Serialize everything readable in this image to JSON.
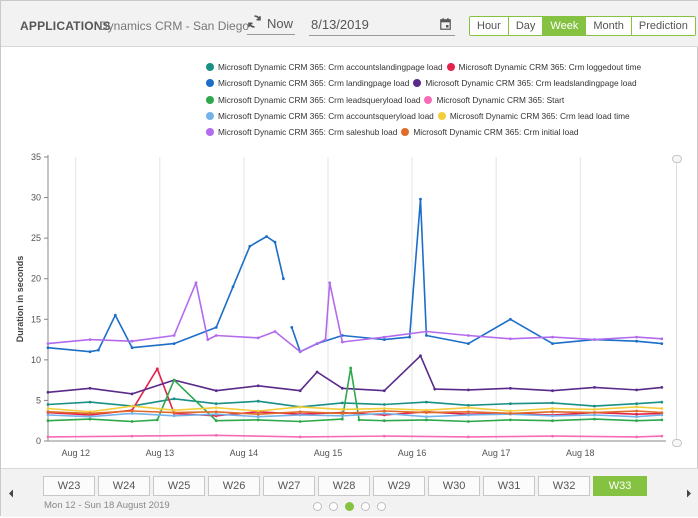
{
  "header": {
    "title": "APPLICATIONS",
    "subtitle": "Dynamics CRM - San Diego",
    "now_label": "Now",
    "date": "8/13/2019",
    "ranges": [
      {
        "label": "Hour",
        "active": false
      },
      {
        "label": "Day",
        "active": false
      },
      {
        "label": "Week",
        "active": true
      },
      {
        "label": "Month",
        "active": false
      },
      {
        "label": "Prediction",
        "active": false
      }
    ]
  },
  "colors": {
    "accent": "#86c241"
  },
  "chart_data": {
    "type": "line",
    "ylabel": "Duration in seconds",
    "ylim": [
      0,
      35
    ],
    "yticks": [
      0,
      5,
      10,
      15,
      20,
      25,
      30,
      35
    ],
    "xlim": [
      0,
      7.35
    ],
    "xticks": [
      {
        "x": 0.33,
        "label": "Aug 12"
      },
      {
        "x": 1.33,
        "label": "Aug 13"
      },
      {
        "x": 2.33,
        "label": "Aug 14"
      },
      {
        "x": 3.33,
        "label": "Aug 15"
      },
      {
        "x": 4.33,
        "label": "Aug 16"
      },
      {
        "x": 5.33,
        "label": "Aug 17"
      },
      {
        "x": 6.33,
        "label": "Aug 18"
      }
    ],
    "grid": "vertical",
    "legend_position": "top",
    "series": [
      {
        "name": "Microsoft Dynamic CRM 365: Crm accountslandingpage load",
        "color": "#1a8f85",
        "x": [
          0,
          0.5,
          1,
          1.5,
          2,
          2.5,
          3,
          3.5,
          4,
          4.5,
          5,
          5.5,
          6,
          6.5,
          7,
          7.3
        ],
        "y": [
          4.5,
          4.8,
          4.3,
          5.2,
          4.6,
          4.9,
          4.2,
          4.7,
          4.5,
          4.8,
          4.4,
          4.6,
          4.7,
          4.3,
          4.6,
          4.8
        ]
      },
      {
        "name": "Microsoft Dynamic CRM 365: Crm loggedout time",
        "color": "#e5224a",
        "x": [
          0,
          0.5,
          1,
          1.3,
          1.5,
          2,
          2.5,
          3,
          3.5,
          4,
          4.5,
          5,
          5.5,
          6,
          6.5,
          7,
          7.3
        ],
        "y": [
          3.5,
          3.2,
          3.8,
          8.9,
          3.4,
          3.1,
          3.6,
          3.3,
          3.5,
          3.2,
          3.6,
          3.3,
          3.4,
          3.2,
          3.5,
          3.3,
          3.4
        ]
      },
      {
        "name": "Microsoft Dynamic CRM 365: Crm landingpage load",
        "color": "#1c6ec9",
        "x": [
          0,
          0.5,
          0.6,
          0.8,
          1,
          1.5,
          2,
          2.2,
          2.4,
          2.6,
          2.7,
          2.8,
          2.9,
          3,
          3.2,
          3.5,
          4,
          4.3,
          4.43,
          4.5,
          5,
          5.5,
          6,
          6.5,
          7,
          7.3
        ],
        "y": [
          11.5,
          11,
          11.2,
          15.5,
          11.5,
          12,
          14,
          19,
          24,
          25.2,
          24.5,
          20,
          14,
          11,
          12,
          13,
          12.5,
          12.8,
          29.8,
          13,
          12,
          15,
          12,
          12.5,
          12.3,
          12
        ],
        "break_after_x": [
          2.8
        ]
      },
      {
        "name": "Microsoft Dynamic CRM 365: Crm leadslandingpage load",
        "color": "#5a2a8a",
        "x": [
          0,
          0.5,
          1,
          1.5,
          2,
          2.5,
          3,
          3.2,
          3.5,
          4,
          4.43,
          4.6,
          5,
          5.5,
          6,
          6.5,
          7,
          7.3
        ],
        "y": [
          6,
          6.5,
          5.8,
          7.5,
          6.2,
          6.8,
          6.2,
          8.5,
          6.5,
          6.2,
          10.5,
          6.4,
          6.3,
          6.5,
          6.2,
          6.6,
          6.3,
          6.6
        ]
      },
      {
        "name": "Microsoft Dynamic CRM 365: Crm leadsqueryload load",
        "color": "#2ea84a",
        "x": [
          0,
          0.5,
          1,
          1.3,
          1.5,
          2,
          2.5,
          3,
          3.5,
          3.6,
          3.7,
          4,
          4.5,
          5,
          5.5,
          6,
          6.5,
          7,
          7.3
        ],
        "y": [
          2.5,
          2.7,
          2.4,
          2.6,
          7.5,
          2.5,
          2.6,
          2.4,
          2.7,
          9,
          2.6,
          2.5,
          2.6,
          2.4,
          2.6,
          2.5,
          2.7,
          2.5,
          2.6
        ]
      },
      {
        "name": "Microsoft Dynamic CRM 365: Start",
        "color": "#f76cb7",
        "x": [
          0,
          1,
          2,
          3,
          4,
          5,
          6,
          7,
          7.3
        ],
        "y": [
          0.5,
          0.6,
          0.7,
          0.5,
          0.6,
          0.5,
          0.6,
          0.5,
          0.6
        ]
      },
      {
        "name": "Microsoft Dynamic CRM 365: Crm accountsqueryload load",
        "color": "#74b2ea",
        "x": [
          0,
          0.5,
          1,
          1.5,
          2,
          2.5,
          3,
          3.5,
          4,
          4.5,
          5,
          5.5,
          6,
          6.5,
          7,
          7.3
        ],
        "y": [
          3.2,
          3,
          3.4,
          3.1,
          3.3,
          3,
          3.2,
          3.1,
          3.4,
          3,
          3.2,
          3.3,
          3.1,
          3.2,
          3,
          3.2
        ]
      },
      {
        "name": "Microsoft Dynamic CRM 365: Crm lead load time",
        "color": "#f2cf3a",
        "x": [
          0,
          0.5,
          1,
          1.5,
          2,
          2.5,
          3,
          3.5,
          4,
          4.5,
          5,
          5.5,
          6,
          6.5,
          7,
          7.3
        ],
        "y": [
          4,
          3.6,
          4.3,
          3.8,
          4.1,
          3.7,
          4.2,
          3.9,
          4,
          3.8,
          4.1,
          3.7,
          4,
          3.9,
          4.2,
          4
        ]
      },
      {
        "name": "Microsoft Dynamic CRM 365: Crm saleshub load",
        "color": "#b36bee",
        "x": [
          0,
          0.5,
          1,
          1.5,
          1.76,
          1.9,
          2,
          2.5,
          2.7,
          3,
          3.3,
          3.35,
          3.5,
          4,
          4.5,
          5,
          5.5,
          6,
          6.5,
          7,
          7.3
        ],
        "y": [
          12,
          12.5,
          12.3,
          13,
          19.5,
          12.5,
          13,
          12.7,
          13.5,
          11,
          12.5,
          19.5,
          12.2,
          12.8,
          13.5,
          13,
          12.6,
          12.8,
          12.5,
          12.8,
          12.6
        ]
      },
      {
        "name": "Microsoft Dynamic CRM 365: Crm initial load",
        "color": "#e06c2a",
        "x": [
          0,
          0.5,
          1,
          1.5,
          2,
          2.5,
          3,
          3.5,
          4,
          4.5,
          5,
          5.5,
          6,
          6.5,
          7,
          7.3
        ],
        "y": [
          3.6,
          3.4,
          3.7,
          3.5,
          3.6,
          3.3,
          3.6,
          3.4,
          3.7,
          3.5,
          3.6,
          3.4,
          3.6,
          3.5,
          3.7,
          3.5
        ]
      }
    ]
  },
  "footer": {
    "weeks": [
      {
        "label": "W23",
        "active": false
      },
      {
        "label": "W24",
        "active": false
      },
      {
        "label": "W25",
        "active": false
      },
      {
        "label": "W26",
        "active": false
      },
      {
        "label": "W27",
        "active": false
      },
      {
        "label": "W28",
        "active": false
      },
      {
        "label": "W29",
        "active": false
      },
      {
        "label": "W30",
        "active": false
      },
      {
        "label": "W31",
        "active": false
      },
      {
        "label": "W32",
        "active": false
      },
      {
        "label": "W33",
        "active": true
      }
    ],
    "range_text": "Mon 12 - Sun 18 August 2019",
    "pages": [
      false,
      false,
      true,
      false,
      false
    ]
  }
}
